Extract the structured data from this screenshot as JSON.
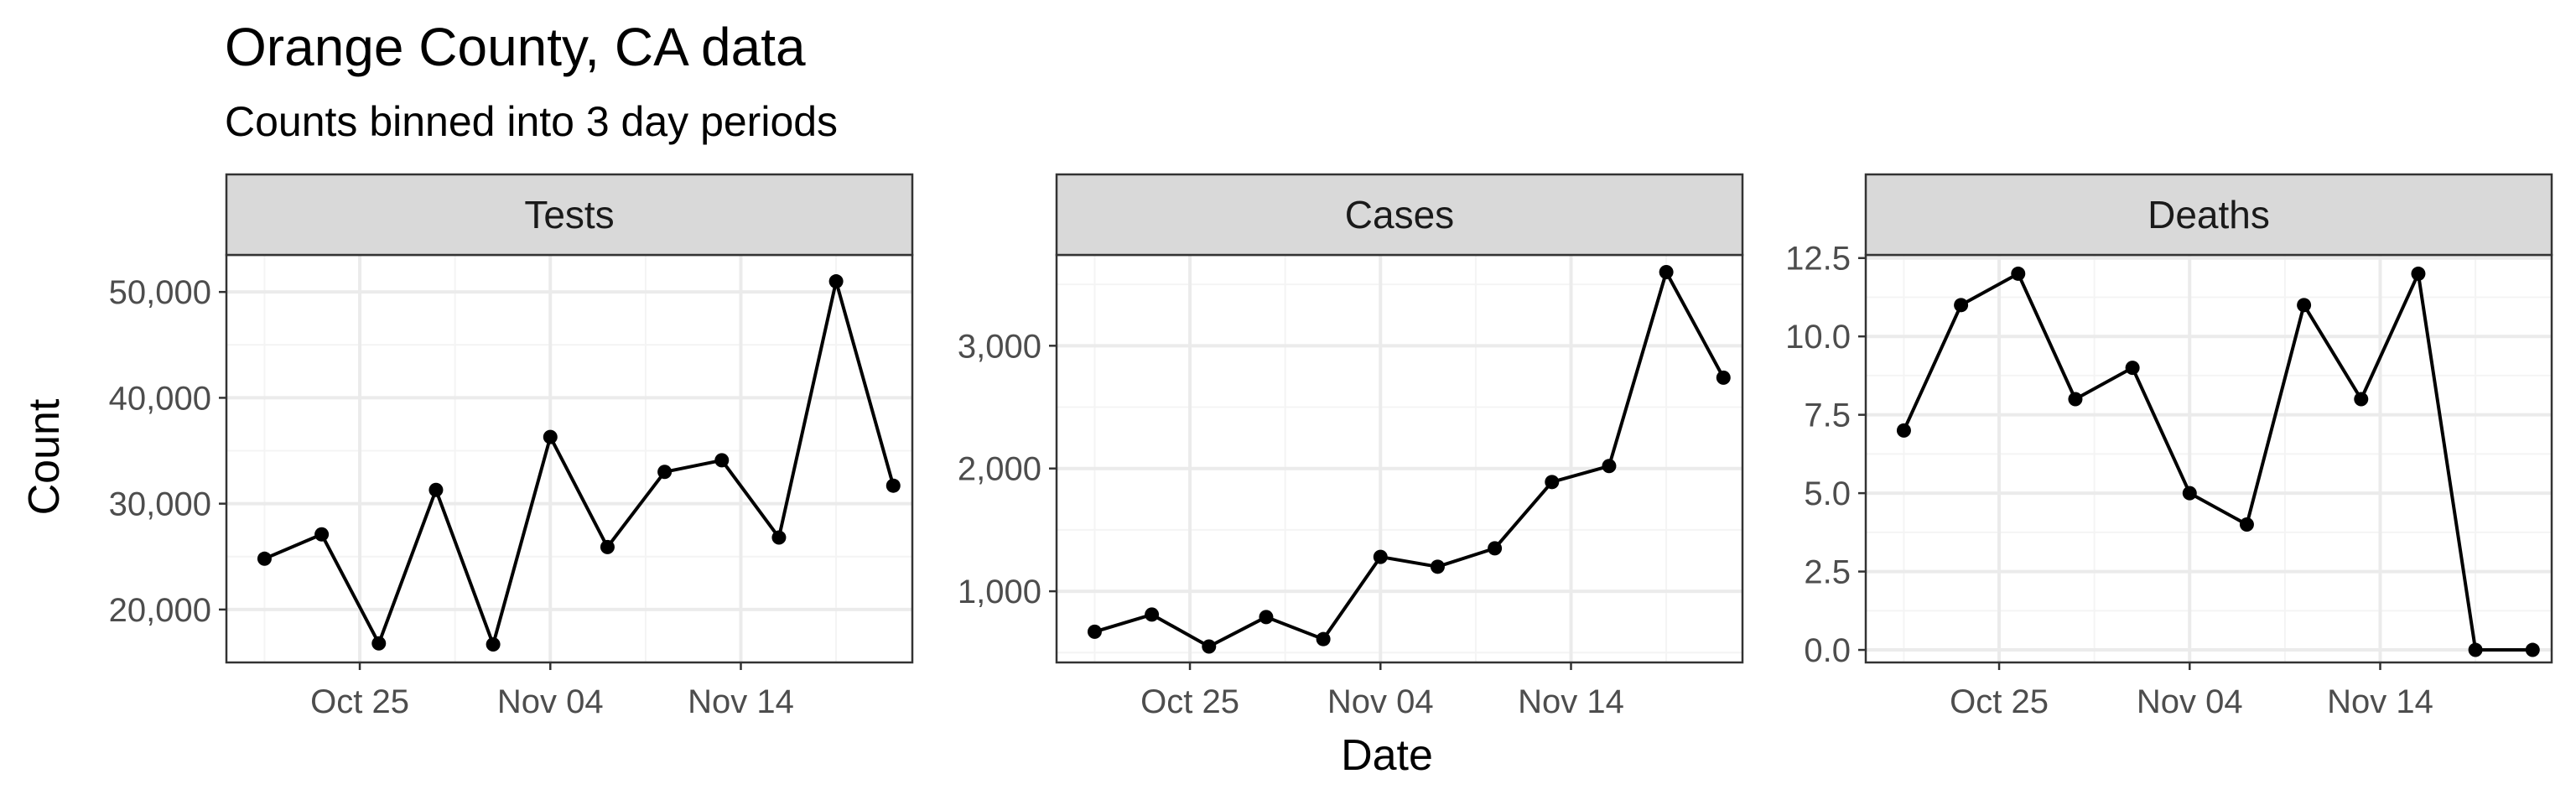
{
  "title": "Orange County, CA data",
  "subtitle": "Counts binned into 3 day periods",
  "xlabel": "Date",
  "ylabel": "Count",
  "colors": {
    "line": "#000000",
    "strip_fill": "#d9d9d9",
    "grid_major": "#ebebeb",
    "grid_minor": "#f4f4f4",
    "tick_text": "#4d4d4d",
    "border": "#333333"
  },
  "chart_data": {
    "type": "line",
    "layout": "facets-horizontal",
    "grid": true,
    "x": [
      "2020-10-20",
      "2020-10-23",
      "2020-10-26",
      "2020-10-29",
      "2020-11-01",
      "2020-11-04",
      "2020-11-07",
      "2020-11-10",
      "2020-11-13",
      "2020-11-16",
      "2020-11-19",
      "2020-11-22"
    ],
    "xlim": [
      "2020-10-18",
      "2020-11-23"
    ],
    "x_ticks": [
      "2020-10-25",
      "2020-11-04",
      "2020-11-14"
    ],
    "x_tick_labels": [
      "Oct 25",
      "Nov 04",
      "Nov 14"
    ],
    "panels": [
      {
        "name": "Tests",
        "values": [
          24800,
          27100,
          16800,
          31300,
          16700,
          36300,
          25900,
          33000,
          34100,
          26800,
          51000,
          31700
        ],
        "ylim": [
          15000,
          53500
        ],
        "y_ticks": [
          20000,
          30000,
          40000,
          50000
        ],
        "y_tick_labels": [
          "20,000",
          "30,000",
          "40,000",
          "50,000"
        ]
      },
      {
        "name": "Cases",
        "values": [
          670,
          810,
          550,
          790,
          610,
          1280,
          1200,
          1350,
          1890,
          2020,
          3600,
          2740
        ],
        "ylim": [
          420,
          3740
        ],
        "y_ticks": [
          1000,
          2000,
          3000
        ],
        "y_tick_labels": [
          "1,000",
          "2,000",
          "3,000"
        ]
      },
      {
        "name": "Deaths",
        "values": [
          7,
          11,
          12,
          8,
          9,
          5,
          4,
          11,
          8,
          12,
          0,
          0
        ],
        "ylim": [
          -0.4,
          12.6
        ],
        "y_ticks": [
          0,
          2.5,
          5,
          7.5,
          10,
          12.5
        ],
        "y_tick_labels": [
          "0.0",
          "2.5",
          "5.0",
          "7.5",
          "10.0",
          "12.5"
        ]
      }
    ]
  }
}
